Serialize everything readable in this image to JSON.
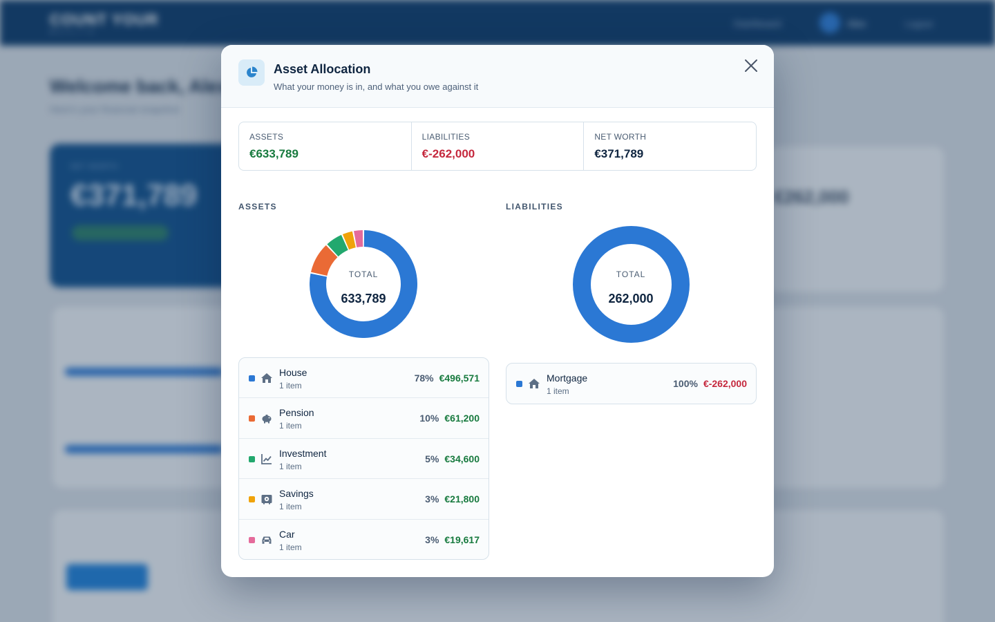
{
  "background": {
    "logo_main": "COUNT YOUR",
    "logo_sub": "WEALTH",
    "nav": {
      "dashboard": "Dashboard",
      "user": "Alex",
      "logout": "Logout"
    },
    "welcome": "Welcome back, Alex",
    "subtitle": "Here's your financial snapshot",
    "net_worth_label": "NET WORTH",
    "net_worth_value": "€371,789",
    "liabilities_value": "€262,000"
  },
  "modal": {
    "title": "Asset Allocation",
    "subtitle": "What your money is in, and what you owe against it",
    "icon": "pie-chart-icon",
    "summary": {
      "assets_label": "ASSETS",
      "assets_value": "€633,789",
      "liabilities_label": "LIABILITIES",
      "liabilities_value": "€-262,000",
      "net_worth_label": "NET WORTH",
      "net_worth_value": "€371,789"
    },
    "assets_title": "ASSETS",
    "liabilities_title": "LIABILITIES",
    "assets_total_label": "TOTAL",
    "assets_total": "633,789",
    "liabilities_total_label": "TOTAL",
    "liabilities_total": "262,000",
    "assets": [
      {
        "name": "House",
        "count": "1 item",
        "pct": "78%",
        "value": "€496,571",
        "color": "#2b78d4",
        "icon": "house-icon"
      },
      {
        "name": "Pension",
        "count": "1 item",
        "pct": "10%",
        "value": "€61,200",
        "color": "#ea6a35",
        "icon": "piggy-bank-icon"
      },
      {
        "name": "Investment",
        "count": "1 item",
        "pct": "5%",
        "value": "€34,600",
        "color": "#22a86e",
        "icon": "chart-line-icon"
      },
      {
        "name": "Savings",
        "count": "1 item",
        "pct": "3%",
        "value": "€21,800",
        "color": "#f0a30a",
        "icon": "safe-icon"
      },
      {
        "name": "Car",
        "count": "1 item",
        "pct": "3%",
        "value": "€19,617",
        "color": "#e56b9b",
        "icon": "car-icon"
      }
    ],
    "liabilities": [
      {
        "name": "Mortgage",
        "count": "1 item",
        "pct": "100%",
        "value": "€-262,000",
        "color": "#2b78d4",
        "icon": "house-icon"
      }
    ]
  },
  "chart_data": [
    {
      "type": "pie",
      "title": "ASSETS",
      "categories": [
        "House",
        "Pension",
        "Investment",
        "Savings",
        "Car"
      ],
      "values": [
        496571,
        61200,
        34600,
        21800,
        19617
      ],
      "colors": [
        "#2b78d4",
        "#ea6a35",
        "#22a86e",
        "#f0a30a",
        "#e56b9b"
      ],
      "center_label": "TOTAL",
      "center_value": "633,789"
    },
    {
      "type": "pie",
      "title": "LIABILITIES",
      "categories": [
        "Mortgage"
      ],
      "values": [
        262000
      ],
      "colors": [
        "#2b78d4"
      ],
      "center_label": "TOTAL",
      "center_value": "262,000"
    }
  ]
}
